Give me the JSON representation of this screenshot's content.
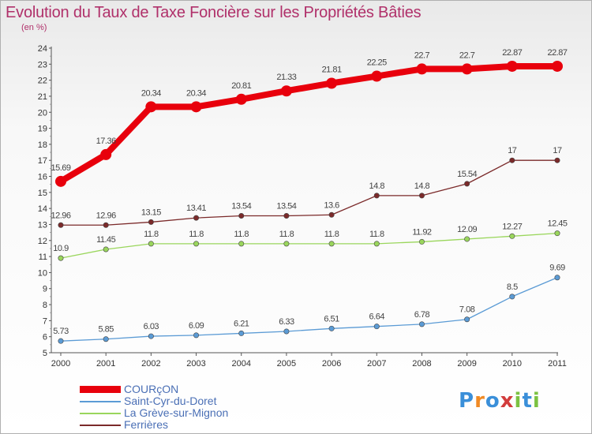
{
  "title": "Evolution du Taux de Taxe Foncière sur les Propriétés Bâties",
  "unit_label": "(en %)",
  "logo": {
    "letters": [
      "P",
      "r",
      "o",
      "x",
      "i",
      "t",
      "i"
    ],
    "colors": [
      "#3a8fd9",
      "#f08a24",
      "#3a8fd9",
      "#d23c3c",
      "#7cc242",
      "#3a8fd9",
      "#7cc242"
    ]
  },
  "chart_data": {
    "type": "line",
    "x": [
      "2000",
      "2001",
      "2002",
      "2003",
      "2004",
      "2005",
      "2006",
      "2007",
      "2008",
      "2009",
      "2010",
      "2011"
    ],
    "ylim": [
      5,
      24
    ],
    "yticks": [
      "5",
      "6",
      "7",
      "8",
      "9",
      "10",
      "11",
      "12",
      "13",
      "14",
      "15",
      "16",
      "17",
      "18",
      "19",
      "20",
      "21",
      "22",
      "23",
      "24"
    ],
    "grid": false,
    "legend_position": "bottom-left",
    "series": [
      {
        "name": "COURçON",
        "color": "#e8000c",
        "width": 8,
        "marker": 7,
        "values": [
          15.69,
          17.36,
          20.34,
          20.34,
          20.81,
          21.33,
          21.81,
          22.25,
          22.7,
          22.7,
          22.87,
          22.87
        ],
        "labels": [
          "15.69",
          "17.36",
          "20.34",
          "20.34",
          "20.81",
          "21.33",
          "21.81",
          "22.25",
          "22.7",
          "22.7",
          "22.87",
          "22.87"
        ]
      },
      {
        "name": "Saint-Cyr-du-Doret",
        "color": "#5b9bd5",
        "width": 1.3,
        "marker": 3.2,
        "values": [
          5.73,
          5.85,
          6.03,
          6.09,
          6.21,
          6.33,
          6.51,
          6.64,
          6.78,
          7.08,
          8.5,
          9.69
        ],
        "labels": [
          "5.73",
          "5.85",
          "6.03",
          "6.09",
          "6.21",
          "6.33",
          "6.51",
          "6.64",
          "6.78",
          "7.08",
          "8.5",
          "9.69"
        ]
      },
      {
        "name": "La Grève-sur-Mignon",
        "color": "#9ad65c",
        "width": 1.3,
        "marker": 3.2,
        "values": [
          10.9,
          11.45,
          11.8,
          11.8,
          11.8,
          11.8,
          11.8,
          11.8,
          11.92,
          12.09,
          12.27,
          12.45
        ],
        "labels": [
          "10.9",
          "11.45",
          "11.8",
          "11.8",
          "11.8",
          "11.8",
          "11.8",
          "11.8",
          "11.92",
          "12.09",
          "12.27",
          "12.45"
        ]
      },
      {
        "name": "Ferrières",
        "color": "#7b2a2a",
        "width": 1.3,
        "marker": 3.2,
        "values": [
          12.96,
          12.96,
          13.15,
          13.41,
          13.54,
          13.54,
          13.6,
          14.8,
          14.8,
          15.54,
          17,
          17
        ],
        "labels": [
          "12.96",
          "12.96",
          "13.15",
          "13.41",
          "13.54",
          "13.54",
          "13.6",
          "14.8",
          "14.8",
          "15.54",
          "17",
          "17"
        ]
      }
    ]
  }
}
